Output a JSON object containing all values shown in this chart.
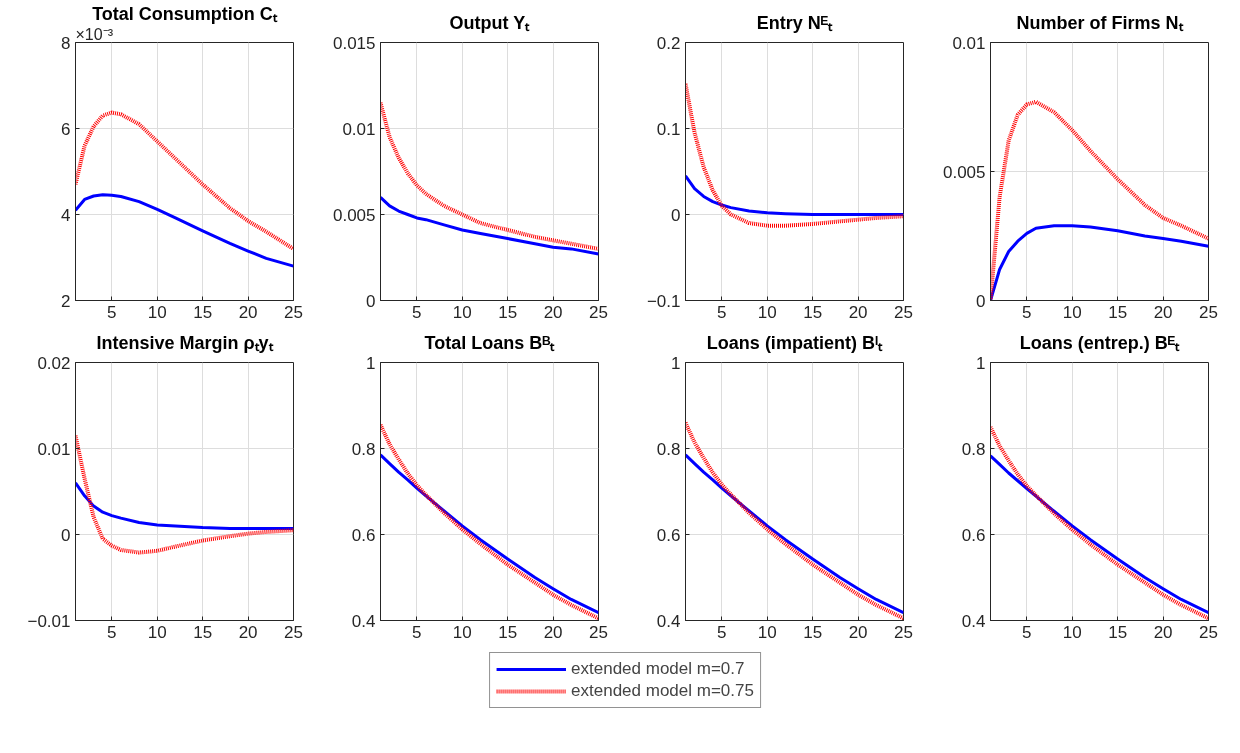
{
  "chart_data": [
    {
      "type": "line",
      "title": "Total Consumption Cₜ",
      "x": [
        1,
        2,
        3,
        4,
        5,
        6,
        8,
        10,
        12,
        15,
        18,
        20,
        22,
        25
      ],
      "xlim": [
        1,
        25
      ],
      "xticks": [
        5,
        10,
        15,
        20,
        25
      ],
      "ylim": [
        2,
        8
      ],
      "yticks": [
        2,
        4,
        6,
        8
      ],
      "annotations": [
        "×10⁻³"
      ],
      "grid": true,
      "legend": "bottom",
      "series": [
        {
          "name": "extended model m=0.7",
          "color": "#0000ff",
          "line_style": "solid",
          "values": [
            4.1,
            4.35,
            4.43,
            4.46,
            4.45,
            4.42,
            4.3,
            4.12,
            3.92,
            3.62,
            3.33,
            3.15,
            2.98,
            2.8
          ]
        },
        {
          "name": "extended model m=0.75",
          "color": "#ff0000",
          "line_style": "dotted",
          "values": [
            4.7,
            5.6,
            6.05,
            6.3,
            6.37,
            6.33,
            6.1,
            5.7,
            5.3,
            4.7,
            4.15,
            3.85,
            3.6,
            3.2
          ]
        }
      ]
    },
    {
      "type": "line",
      "title": "Output Yₜ",
      "x": [
        1,
        2,
        3,
        4,
        5,
        6,
        8,
        10,
        12,
        15,
        18,
        20,
        22,
        25
      ],
      "xlim": [
        1,
        25
      ],
      "xticks": [
        5,
        10,
        15,
        20,
        25
      ],
      "ylim": [
        0,
        0.015
      ],
      "yticks": [
        0,
        0.005,
        0.01,
        0.015
      ],
      "grid": true,
      "series": [
        {
          "color": "#0000ff",
          "line_style": "solid",
          "values": [
            0.006,
            0.0055,
            0.0052,
            0.005,
            0.0048,
            0.0047,
            0.0044,
            0.0041,
            0.0039,
            0.0036,
            0.0033,
            0.0031,
            0.003,
            0.0027
          ]
        },
        {
          "color": "#ff0000",
          "line_style": "dotted",
          "values": [
            0.0115,
            0.0095,
            0.0083,
            0.0074,
            0.0067,
            0.0062,
            0.0055,
            0.005,
            0.0045,
            0.0041,
            0.0037,
            0.0035,
            0.0033,
            0.003
          ]
        }
      ]
    },
    {
      "type": "line",
      "title": "Entry Nᴱₜ",
      "x": [
        1,
        2,
        3,
        4,
        5,
        6,
        8,
        10,
        12,
        15,
        18,
        20,
        22,
        25
      ],
      "xlim": [
        1,
        25
      ],
      "xticks": [
        5,
        10,
        15,
        20,
        25
      ],
      "ylim": [
        -0.1,
        0.2
      ],
      "yticks": [
        -0.1,
        0,
        0.1,
        0.2
      ],
      "grid": true,
      "series": [
        {
          "color": "#0000ff",
          "line_style": "solid",
          "values": [
            0.045,
            0.03,
            0.021,
            0.015,
            0.011,
            0.008,
            0.004,
            0.002,
            0.001,
            0,
            0,
            0,
            0,
            0
          ]
        },
        {
          "color": "#ff0000",
          "line_style": "dotted",
          "values": [
            0.152,
            0.095,
            0.055,
            0.028,
            0.01,
            0,
            -0.01,
            -0.013,
            -0.013,
            -0.011,
            -0.008,
            -0.006,
            -0.004,
            -0.002
          ]
        }
      ]
    },
    {
      "type": "line",
      "title": "Number of Firms Nₜ",
      "x": [
        1,
        2,
        3,
        4,
        5,
        6,
        8,
        10,
        12,
        15,
        18,
        20,
        22,
        25
      ],
      "xlim": [
        1,
        25
      ],
      "xticks": [
        5,
        10,
        15,
        20,
        25
      ],
      "ylim": [
        0,
        0.01
      ],
      "yticks": [
        0,
        0.005,
        0.01
      ],
      "grid": true,
      "series": [
        {
          "color": "#0000ff",
          "line_style": "solid",
          "values": [
            0,
            0.0012,
            0.0019,
            0.0023,
            0.0026,
            0.0028,
            0.0029,
            0.0029,
            0.00285,
            0.0027,
            0.0025,
            0.0024,
            0.0023,
            0.0021
          ]
        },
        {
          "color": "#ff0000",
          "line_style": "dotted",
          "values": [
            0,
            0.004,
            0.0062,
            0.0072,
            0.0076,
            0.0077,
            0.0073,
            0.0066,
            0.0058,
            0.0047,
            0.0037,
            0.0032,
            0.0029,
            0.0024
          ]
        }
      ]
    },
    {
      "type": "line",
      "title": "Intensive Margin ρₜyₜ",
      "x": [
        1,
        2,
        3,
        4,
        5,
        6,
        8,
        10,
        12,
        15,
        18,
        20,
        22,
        25
      ],
      "xlim": [
        1,
        25
      ],
      "xticks": [
        5,
        10,
        15,
        20,
        25
      ],
      "ylim": [
        -0.01,
        0.02
      ],
      "yticks": [
        -0.01,
        0,
        0.01,
        0.02
      ],
      "grid": true,
      "series": [
        {
          "color": "#0000ff",
          "line_style": "solid",
          "values": [
            0.006,
            0.0045,
            0.0033,
            0.0026,
            0.0022,
            0.0019,
            0.0014,
            0.0011,
            0.001,
            0.0008,
            0.0007,
            0.0007,
            0.0007,
            0.0007
          ]
        },
        {
          "color": "#ff0000",
          "line_style": "dotted",
          "values": [
            0.0115,
            0.0065,
            0.002,
            -0.0005,
            -0.0013,
            -0.0018,
            -0.0021,
            -0.0019,
            -0.0014,
            -0.0007,
            -0.0002,
            0.0001,
            0.0003,
            0.0005
          ]
        }
      ]
    },
    {
      "type": "line",
      "title": "Total Loans Bᴮₜ",
      "x": [
        1,
        2,
        3,
        4,
        5,
        6,
        8,
        10,
        12,
        15,
        18,
        20,
        22,
        25
      ],
      "xlim": [
        1,
        25
      ],
      "xticks": [
        5,
        10,
        15,
        20,
        25
      ],
      "ylim": [
        0.4,
        1
      ],
      "yticks": [
        0.4,
        0.6,
        0.8,
        1
      ],
      "grid": true,
      "series": [
        {
          "color": "#0000ff",
          "line_style": "solid",
          "values": [
            0.785,
            0.765,
            0.745,
            0.727,
            0.708,
            0.69,
            0.655,
            0.62,
            0.588,
            0.543,
            0.5,
            0.474,
            0.449,
            0.418
          ]
        },
        {
          "color": "#ff0000",
          "line_style": "dotted",
          "values": [
            0.855,
            0.81,
            0.775,
            0.742,
            0.715,
            0.692,
            0.65,
            0.612,
            0.578,
            0.53,
            0.488,
            0.46,
            0.436,
            0.405
          ]
        }
      ]
    },
    {
      "type": "line",
      "title": "Loans (impatient) Bᴵₜ",
      "x": [
        1,
        2,
        3,
        4,
        5,
        6,
        8,
        10,
        12,
        15,
        18,
        20,
        22,
        25
      ],
      "xlim": [
        1,
        25
      ],
      "xticks": [
        5,
        10,
        15,
        20,
        25
      ],
      "ylim": [
        0.4,
        1
      ],
      "yticks": [
        0.4,
        0.6,
        0.8,
        1
      ],
      "grid": true,
      "series": [
        {
          "color": "#0000ff",
          "line_style": "solid",
          "values": [
            0.785,
            0.765,
            0.745,
            0.727,
            0.708,
            0.69,
            0.655,
            0.62,
            0.588,
            0.543,
            0.5,
            0.474,
            0.449,
            0.418
          ]
        },
        {
          "color": "#ff0000",
          "line_style": "dotted",
          "values": [
            0.86,
            0.814,
            0.778,
            0.744,
            0.716,
            0.693,
            0.65,
            0.612,
            0.578,
            0.53,
            0.488,
            0.46,
            0.436,
            0.405
          ]
        }
      ]
    },
    {
      "type": "line",
      "title": "Loans (entrep.) Bᴱₜ",
      "x": [
        1,
        2,
        3,
        4,
        5,
        6,
        8,
        10,
        12,
        15,
        18,
        20,
        22,
        25
      ],
      "xlim": [
        1,
        25
      ],
      "xticks": [
        5,
        10,
        15,
        20,
        25
      ],
      "ylim": [
        0.4,
        1
      ],
      "yticks": [
        0.4,
        0.6,
        0.8,
        1
      ],
      "grid": true,
      "series": [
        {
          "color": "#0000ff",
          "line_style": "solid",
          "values": [
            0.783,
            0.763,
            0.743,
            0.725,
            0.707,
            0.689,
            0.654,
            0.62,
            0.588,
            0.543,
            0.5,
            0.474,
            0.449,
            0.418
          ]
        },
        {
          "color": "#ff0000",
          "line_style": "dotted",
          "values": [
            0.85,
            0.806,
            0.772,
            0.74,
            0.713,
            0.691,
            0.649,
            0.611,
            0.577,
            0.53,
            0.488,
            0.46,
            0.436,
            0.405
          ]
        }
      ]
    }
  ]
}
